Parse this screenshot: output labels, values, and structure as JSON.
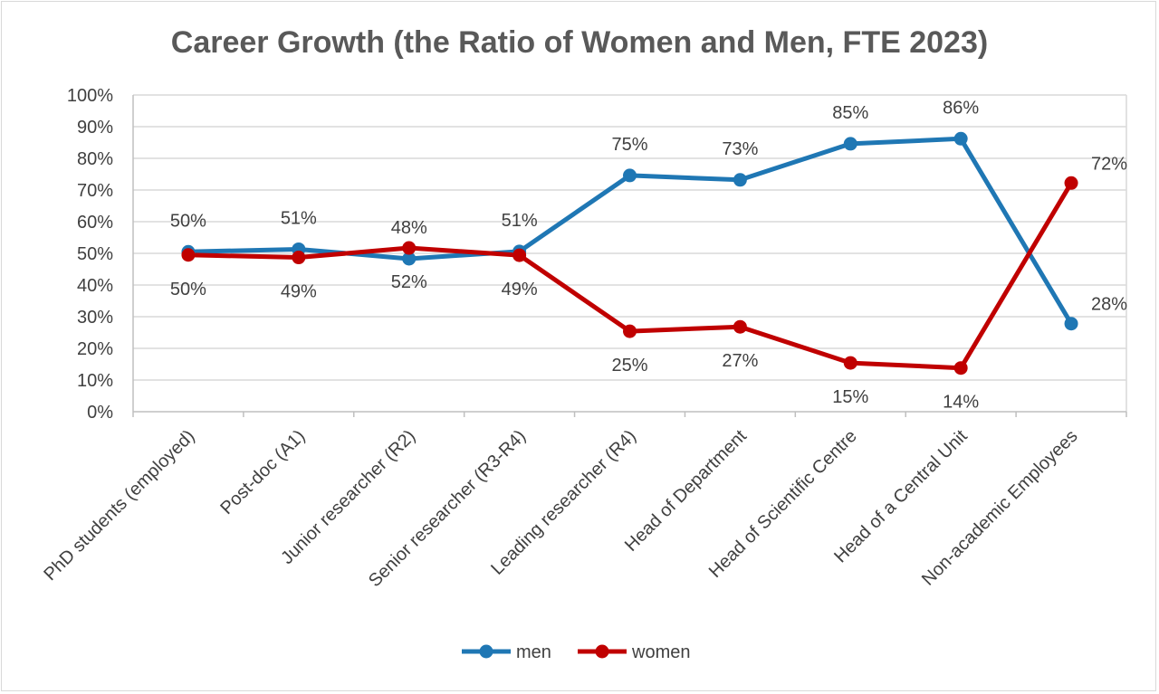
{
  "chart_data": {
    "type": "line",
    "title": "Career Growth (the Ratio of Women and Men, FTE 2023)",
    "categories": [
      "PhD students (employed)",
      "Post-doc (A1)",
      "Junior researcher (R2)",
      "Senior researcher (R3-R4)",
      "Leading researcher (R4)",
      "Head of Department",
      "Head of Scientific Centre",
      "Head of a Central Unit",
      "Non-academic Employees"
    ],
    "series": [
      {
        "name": "men",
        "color": "#1F77B4",
        "values": [
          0.505,
          0.513,
          0.483,
          0.506,
          0.746,
          0.732,
          0.846,
          0.862,
          0.278
        ],
        "labels": [
          "50%",
          "51%",
          "48%",
          "51%",
          "75%",
          "73%",
          "85%",
          "86%",
          "28%"
        ],
        "label_positions": [
          "above",
          "above",
          "above",
          "above",
          "above",
          "above",
          "above",
          "above",
          "right"
        ]
      },
      {
        "name": "women",
        "color": "#C00000",
        "values": [
          0.495,
          0.487,
          0.517,
          0.494,
          0.254,
          0.268,
          0.154,
          0.138,
          0.722
        ],
        "labels": [
          "50%",
          "49%",
          "52%",
          "49%",
          "25%",
          "27%",
          "15%",
          "14%",
          "72%"
        ],
        "label_positions": [
          "below",
          "below",
          "below",
          "below",
          "below",
          "below",
          "below",
          "below",
          "right"
        ]
      }
    ],
    "ylim": [
      0,
      1
    ],
    "yticks": [
      "0%",
      "10%",
      "20%",
      "30%",
      "40%",
      "50%",
      "60%",
      "70%",
      "80%",
      "90%",
      "100%"
    ],
    "xlabel": "",
    "ylabel": "",
    "grid": true,
    "legend": "bottom"
  }
}
